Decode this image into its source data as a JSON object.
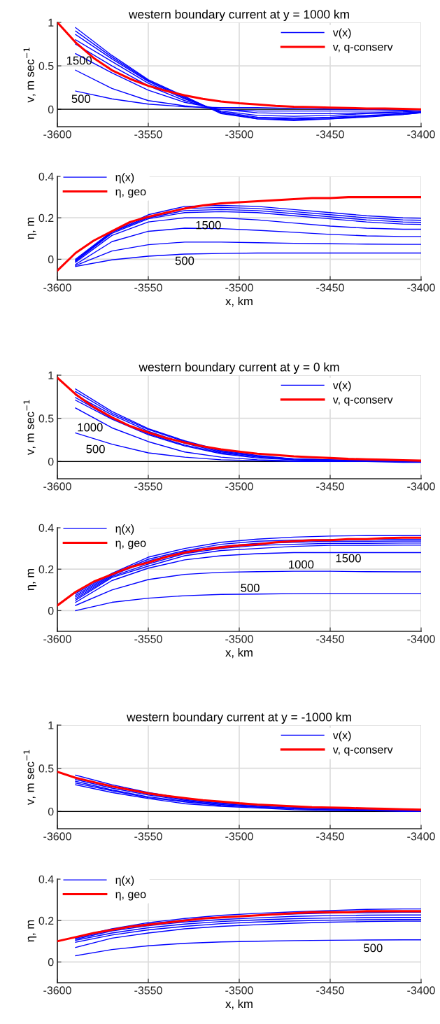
{
  "chart_data": [
    {
      "type": "line",
      "title": "western boundary current at y = 1000 km",
      "ylabel": "v, m sec$^{−1}$",
      "xlim": [
        -3600,
        -3400
      ],
      "xticks": [
        -3600,
        -3550,
        -3500,
        -3450,
        -3400
      ],
      "ylim": [
        -0.2,
        1
      ],
      "yticks": [
        0,
        0.5,
        1
      ],
      "grid": true,
      "legend": "top right",
      "line_style": "solid",
      "ref_lines": [
        {
          "axis": "y",
          "value": 0,
          "color": "#000000"
        }
      ],
      "annotations": [
        "1500",
        "500"
      ],
      "x": [
        -3590,
        -3570,
        -3550,
        -3530,
        -3510,
        -3490,
        -3470,
        -3450,
        -3430,
        -3410,
        -3400
      ],
      "series": [
        {
          "name": "v(x)",
          "color": "#0000ff",
          "values": [
            0.21,
            0.12,
            0.06,
            0.03,
            0.02,
            0.02,
            0.01,
            0.0,
            0.0,
            -0.01,
            -0.02
          ]
        },
        {
          "color": "#0000ff",
          "values": [
            0.45,
            0.24,
            0.1,
            0.04,
            0.0,
            -0.02,
            -0.02,
            -0.02,
            -0.02,
            -0.02,
            -0.02
          ]
        },
        {
          "color": "#0000ff",
          "values": [
            0.64,
            0.42,
            0.22,
            0.08,
            0.0,
            -0.04,
            -0.05,
            -0.05,
            -0.04,
            -0.03,
            -0.02
          ]
        },
        {
          "color": "#0000ff",
          "values": [
            0.75,
            0.5,
            0.27,
            0.1,
            -0.02,
            -0.07,
            -0.08,
            -0.07,
            -0.05,
            -0.04,
            -0.03
          ]
        },
        {
          "color": "#0000ff",
          "values": [
            0.8,
            0.55,
            0.3,
            0.12,
            -0.03,
            -0.09,
            -0.1,
            -0.09,
            -0.07,
            -0.05,
            -0.03
          ]
        },
        {
          "color": "#0000ff",
          "values": [
            0.86,
            0.58,
            0.32,
            0.13,
            -0.04,
            -0.1,
            -0.11,
            -0.1,
            -0.08,
            -0.05,
            -0.04
          ]
        },
        {
          "color": "#0000ff",
          "values": [
            0.9,
            0.6,
            0.33,
            0.14,
            -0.04,
            -0.11,
            -0.12,
            -0.11,
            -0.08,
            -0.06,
            -0.04
          ]
        },
        {
          "color": "#0000ff",
          "values": [
            0.94,
            0.62,
            0.34,
            0.15,
            -0.05,
            -0.11,
            -0.13,
            -0.11,
            -0.09,
            -0.06,
            -0.04
          ]
        },
        {
          "name": "v, q-conserv",
          "color": "#ff0000",
          "x": [
            -3600,
            -3590,
            -3580,
            -3570,
            -3560,
            -3550,
            -3540,
            -3530,
            -3520,
            -3510,
            -3500,
            -3490,
            -3480,
            -3470,
            -3460,
            -3450,
            -3440,
            -3430,
            -3420,
            -3410,
            -3400
          ],
          "values": [
            1.0,
            0.77,
            0.59,
            0.45,
            0.35,
            0.27,
            0.21,
            0.16,
            0.12,
            0.09,
            0.07,
            0.055,
            0.04,
            0.03,
            0.025,
            0.02,
            0.015,
            0.01,
            0.01,
            0.005,
            0.0
          ]
        }
      ]
    },
    {
      "type": "line",
      "xlabel": "x, km",
      "ylabel": "η, m",
      "xlim": [
        -3600,
        -3400
      ],
      "xticks": [
        -3600,
        -3550,
        -3500,
        -3450,
        -3400
      ],
      "ylim": [
        -0.1,
        0.4
      ],
      "yticks": [
        0,
        0.2,
        0.4
      ],
      "grid": true,
      "legend": "top left",
      "line_style": "solid",
      "annotations": [
        "1500",
        "500"
      ],
      "x": [
        -3590,
        -3570,
        -3550,
        -3530,
        -3510,
        -3490,
        -3470,
        -3450,
        -3430,
        -3410,
        -3400
      ],
      "series": [
        {
          "name": "η(x)",
          "color": "#0000ff",
          "values": [
            -0.035,
            -0.003,
            0.015,
            0.025,
            0.028,
            0.03,
            0.03,
            0.03,
            0.03,
            0.03,
            0.03
          ]
        },
        {
          "color": "#0000ff",
          "values": [
            -0.03,
            0.04,
            0.07,
            0.083,
            0.083,
            0.08,
            0.077,
            0.075,
            0.073,
            0.072,
            0.072
          ]
        },
        {
          "color": "#0000ff",
          "values": [
            -0.025,
            0.085,
            0.135,
            0.15,
            0.148,
            0.14,
            0.13,
            0.12,
            0.113,
            0.11,
            0.11
          ]
        },
        {
          "color": "#0000ff",
          "values": [
            -0.015,
            0.115,
            0.18,
            0.2,
            0.2,
            0.19,
            0.175,
            0.16,
            0.15,
            0.145,
            0.145
          ]
        },
        {
          "color": "#0000ff",
          "values": [
            -0.01,
            0.125,
            0.195,
            0.225,
            0.23,
            0.225,
            0.21,
            0.195,
            0.18,
            0.17,
            0.168
          ]
        },
        {
          "color": "#0000ff",
          "values": [
            -0.008,
            0.13,
            0.2,
            0.235,
            0.24,
            0.235,
            0.22,
            0.205,
            0.19,
            0.18,
            0.178
          ]
        },
        {
          "color": "#0000ff",
          "values": [
            -0.005,
            0.133,
            0.205,
            0.245,
            0.25,
            0.245,
            0.23,
            0.215,
            0.2,
            0.19,
            0.188
          ]
        },
        {
          "color": "#0000ff",
          "values": [
            0.0,
            0.135,
            0.215,
            0.255,
            0.26,
            0.255,
            0.24,
            0.225,
            0.21,
            0.2,
            0.198
          ]
        },
        {
          "name": "η, geo",
          "color": "#ff0000",
          "x": [
            -3600,
            -3590,
            -3580,
            -3570,
            -3560,
            -3550,
            -3540,
            -3530,
            -3520,
            -3510,
            -3500,
            -3490,
            -3480,
            -3470,
            -3460,
            -3450,
            -3440,
            -3430,
            -3420,
            -3410,
            -3400
          ],
          "values": [
            -0.055,
            0.03,
            0.09,
            0.135,
            0.18,
            0.205,
            0.225,
            0.245,
            0.26,
            0.27,
            0.275,
            0.28,
            0.285,
            0.29,
            0.295,
            0.295,
            0.3,
            0.3,
            0.3,
            0.3,
            0.3
          ]
        }
      ]
    },
    {
      "type": "line",
      "title": "western boundary current at y = 0 km",
      "ylabel": "v, m sec$^{−1}$",
      "xlim": [
        -3600,
        -3400
      ],
      "xticks": [
        -3600,
        -3550,
        -3500,
        -3450,
        -3400
      ],
      "ylim": [
        -0.2,
        1
      ],
      "yticks": [
        0,
        0.5,
        1
      ],
      "grid": true,
      "legend": "top right",
      "line_style": "solid",
      "ref_lines": [
        {
          "axis": "y",
          "value": 0,
          "color": "#000000"
        }
      ],
      "annotations": [
        "1000",
        "500"
      ],
      "x": [
        -3590,
        -3570,
        -3550,
        -3530,
        -3510,
        -3490,
        -3470,
        -3450,
        -3430,
        -3410,
        -3400
      ],
      "series": [
        {
          "name": "v(x)",
          "color": "#0000ff",
          "values": [
            0.33,
            0.2,
            0.1,
            0.05,
            0.02,
            0.01,
            0.0,
            0.0,
            0.0,
            0.0,
            0.0
          ]
        },
        {
          "color": "#0000ff",
          "values": [
            0.62,
            0.39,
            0.23,
            0.11,
            0.05,
            0.02,
            0.01,
            0.0,
            0.0,
            -0.01,
            -0.01
          ]
        },
        {
          "color": "#0000ff",
          "values": [
            0.71,
            0.49,
            0.31,
            0.18,
            0.09,
            0.04,
            0.02,
            0.01,
            0.0,
            0.0,
            0.0
          ]
        },
        {
          "color": "#0000ff",
          "values": [
            0.74,
            0.5,
            0.32,
            0.19,
            0.1,
            0.05,
            0.02,
            0.01,
            0.0,
            0.0,
            0.0
          ]
        },
        {
          "color": "#0000ff",
          "values": [
            0.77,
            0.54,
            0.35,
            0.21,
            0.11,
            0.06,
            0.03,
            0.01,
            0.01,
            0.0,
            0.0
          ]
        },
        {
          "color": "#0000ff",
          "values": [
            0.81,
            0.56,
            0.37,
            0.23,
            0.12,
            0.06,
            0.03,
            0.02,
            0.01,
            0.0,
            0.0
          ]
        },
        {
          "color": "#0000ff",
          "values": [
            0.84,
            0.58,
            0.38,
            0.24,
            0.13,
            0.07,
            0.03,
            0.02,
            0.01,
            0.0,
            0.0
          ]
        },
        {
          "name": "v, q-conserv",
          "color": "#ff0000",
          "x": [
            -3600,
            -3590,
            -3580,
            -3570,
            -3560,
            -3550,
            -3540,
            -3530,
            -3520,
            -3510,
            -3500,
            -3490,
            -3480,
            -3470,
            -3460,
            -3450,
            -3440,
            -3430,
            -3420,
            -3410,
            -3400
          ],
          "values": [
            0.97,
            0.78,
            0.63,
            0.51,
            0.41,
            0.335,
            0.27,
            0.22,
            0.175,
            0.14,
            0.115,
            0.09,
            0.075,
            0.06,
            0.05,
            0.04,
            0.03,
            0.025,
            0.02,
            0.015,
            0.01
          ]
        }
      ]
    },
    {
      "type": "line",
      "xlabel": "x, km",
      "ylabel": "η, m",
      "xlim": [
        -3600,
        -3400
      ],
      "xticks": [
        -3600,
        -3550,
        -3500,
        -3450,
        -3400
      ],
      "ylim": [
        -0.1,
        0.4
      ],
      "yticks": [
        0,
        0.2,
        0.4
      ],
      "grid": true,
      "legend": "top left",
      "line_style": "solid",
      "annotations": [
        "1500",
        "1000",
        "500"
      ],
      "x": [
        -3590,
        -3570,
        -3550,
        -3530,
        -3510,
        -3490,
        -3470,
        -3450,
        -3430,
        -3410,
        -3400
      ],
      "series": [
        {
          "name": "η(x)",
          "color": "#0000ff",
          "values": [
            0.0,
            0.04,
            0.06,
            0.072,
            0.078,
            0.08,
            0.082,
            0.083,
            0.083,
            0.083,
            0.083
          ]
        },
        {
          "color": "#0000ff",
          "values": [
            0.025,
            0.1,
            0.15,
            0.175,
            0.185,
            0.188,
            0.19,
            0.19,
            0.188,
            0.187,
            0.187
          ]
        },
        {
          "color": "#0000ff",
          "values": [
            0.04,
            0.145,
            0.205,
            0.245,
            0.265,
            0.275,
            0.28,
            0.28,
            0.28,
            0.28,
            0.28
          ]
        },
        {
          "color": "#0000ff",
          "values": [
            0.05,
            0.16,
            0.215,
            0.265,
            0.29,
            0.3,
            0.31,
            0.315,
            0.315,
            0.316,
            0.316
          ]
        },
        {
          "color": "#0000ff",
          "values": [
            0.058,
            0.165,
            0.225,
            0.275,
            0.3,
            0.315,
            0.32,
            0.325,
            0.325,
            0.326,
            0.326
          ]
        },
        {
          "color": "#0000ff",
          "values": [
            0.066,
            0.17,
            0.24,
            0.285,
            0.31,
            0.325,
            0.33,
            0.335,
            0.335,
            0.336,
            0.336
          ]
        },
        {
          "color": "#0000ff",
          "values": [
            0.074,
            0.175,
            0.248,
            0.29,
            0.32,
            0.335,
            0.34,
            0.343,
            0.344,
            0.344,
            0.344
          ]
        },
        {
          "color": "#0000ff",
          "values": [
            0.082,
            0.18,
            0.258,
            0.3,
            0.33,
            0.345,
            0.355,
            0.36,
            0.362,
            0.362,
            0.362
          ]
        },
        {
          "name": "η, geo",
          "color": "#ff0000",
          "x": [
            -3600,
            -3590,
            -3580,
            -3570,
            -3560,
            -3550,
            -3540,
            -3530,
            -3520,
            -3510,
            -3500,
            -3490,
            -3480,
            -3470,
            -3460,
            -3450,
            -3440,
            -3430,
            -3420,
            -3410,
            -3400
          ],
          "values": [
            0.025,
            0.09,
            0.14,
            0.175,
            0.21,
            0.232,
            0.26,
            0.28,
            0.295,
            0.305,
            0.315,
            0.32,
            0.33,
            0.335,
            0.34,
            0.34,
            0.345,
            0.345,
            0.35,
            0.352,
            0.352
          ]
        }
      ]
    },
    {
      "type": "line",
      "title": "western boundary current at y = -1000 km",
      "ylabel": "v, m sec$^{−1}$",
      "xlim": [
        -3600,
        -3400
      ],
      "xticks": [
        -3600,
        -3550,
        -3500,
        -3450,
        -3400
      ],
      "ylim": [
        -0.2,
        1
      ],
      "yticks": [
        0,
        0.5,
        1
      ],
      "grid": true,
      "legend": "top right",
      "line_style": "solid",
      "ref_lines": [
        {
          "axis": "y",
          "value": 0,
          "color": "#000000"
        }
      ],
      "x": [
        -3590,
        -3570,
        -3550,
        -3530,
        -3510,
        -3490,
        -3470,
        -3450,
        -3430,
        -3410,
        -3400
      ],
      "series": [
        {
          "name": "v(x)",
          "color": "#0000ff",
          "values": [
            0.31,
            0.22,
            0.15,
            0.09,
            0.06,
            0.04,
            0.02,
            0.01,
            0.01,
            0.0,
            0.0
          ]
        },
        {
          "color": "#0000ff",
          "values": [
            0.33,
            0.24,
            0.16,
            0.11,
            0.07,
            0.05,
            0.03,
            0.02,
            0.01,
            0.01,
            0.01
          ]
        },
        {
          "color": "#0000ff",
          "values": [
            0.35,
            0.25,
            0.17,
            0.12,
            0.08,
            0.05,
            0.03,
            0.02,
            0.01,
            0.01,
            0.01
          ]
        },
        {
          "color": "#0000ff",
          "values": [
            0.37,
            0.27,
            0.19,
            0.13,
            0.09,
            0.06,
            0.04,
            0.03,
            0.02,
            0.01,
            0.01
          ]
        },
        {
          "color": "#0000ff",
          "values": [
            0.39,
            0.29,
            0.2,
            0.14,
            0.1,
            0.07,
            0.05,
            0.03,
            0.02,
            0.02,
            0.02
          ]
        },
        {
          "color": "#0000ff",
          "values": [
            0.42,
            0.31,
            0.22,
            0.15,
            0.11,
            0.08,
            0.05,
            0.04,
            0.03,
            0.02,
            0.02
          ]
        },
        {
          "name": "v, q-conserv",
          "color": "#ff0000",
          "x": [
            -3600,
            -3590,
            -3580,
            -3570,
            -3560,
            -3550,
            -3540,
            -3530,
            -3520,
            -3510,
            -3500,
            -3490,
            -3480,
            -3470,
            -3460,
            -3450,
            -3440,
            -3430,
            -3420,
            -3410,
            -3400
          ],
          "values": [
            0.46,
            0.39,
            0.34,
            0.29,
            0.25,
            0.21,
            0.18,
            0.155,
            0.13,
            0.115,
            0.095,
            0.08,
            0.07,
            0.06,
            0.05,
            0.045,
            0.04,
            0.035,
            0.03,
            0.025,
            0.02
          ]
        }
      ]
    },
    {
      "type": "line",
      "xlabel": "x, km",
      "ylabel": "η, m",
      "xlim": [
        -3600,
        -3400
      ],
      "xticks": [
        -3600,
        -3550,
        -3500,
        -3450,
        -3400
      ],
      "ylim": [
        -0.1,
        0.4
      ],
      "yticks": [
        0,
        0.2,
        0.4
      ],
      "grid": true,
      "legend": "top left",
      "line_style": "solid",
      "annotations": [
        "500"
      ],
      "x": [
        -3590,
        -3570,
        -3550,
        -3530,
        -3510,
        -3490,
        -3470,
        -3450,
        -3430,
        -3410,
        -3400
      ],
      "series": [
        {
          "name": "η(x)",
          "color": "#0000ff",
          "values": [
            0.03,
            0.06,
            0.078,
            0.09,
            0.097,
            0.1,
            0.103,
            0.105,
            0.106,
            0.107,
            0.107
          ]
        },
        {
          "color": "#0000ff",
          "values": [
            0.07,
            0.115,
            0.14,
            0.16,
            0.172,
            0.18,
            0.187,
            0.192,
            0.195,
            0.197,
            0.197
          ]
        },
        {
          "color": "#0000ff",
          "values": [
            0.095,
            0.13,
            0.155,
            0.172,
            0.185,
            0.193,
            0.198,
            0.202,
            0.204,
            0.205,
            0.205
          ]
        },
        {
          "color": "#0000ff",
          "values": [
            0.105,
            0.14,
            0.165,
            0.183,
            0.195,
            0.203,
            0.209,
            0.212,
            0.214,
            0.215,
            0.215
          ]
        },
        {
          "color": "#0000ff",
          "values": [
            0.11,
            0.15,
            0.175,
            0.193,
            0.205,
            0.213,
            0.22,
            0.224,
            0.226,
            0.227,
            0.227
          ]
        },
        {
          "color": "#0000ff",
          "values": [
            0.115,
            0.155,
            0.185,
            0.203,
            0.215,
            0.225,
            0.232,
            0.236,
            0.238,
            0.24,
            0.24
          ]
        },
        {
          "color": "#0000ff",
          "values": [
            0.12,
            0.16,
            0.19,
            0.21,
            0.225,
            0.235,
            0.242,
            0.248,
            0.254,
            0.256,
            0.256
          ]
        },
        {
          "name": "η, geo",
          "color": "#ff0000",
          "x": [
            -3600,
            -3590,
            -3580,
            -3570,
            -3560,
            -3550,
            -3540,
            -3530,
            -3520,
            -3510,
            -3500,
            -3490,
            -3480,
            -3470,
            -3460,
            -3450,
            -3440,
            -3430,
            -3420,
            -3410,
            -3400
          ],
          "values": [
            0.1,
            0.12,
            0.14,
            0.155,
            0.17,
            0.18,
            0.19,
            0.2,
            0.21,
            0.215,
            0.22,
            0.225,
            0.23,
            0.235,
            0.24,
            0.24,
            0.24,
            0.245,
            0.245,
            0.245,
            0.245
          ]
        }
      ]
    }
  ]
}
